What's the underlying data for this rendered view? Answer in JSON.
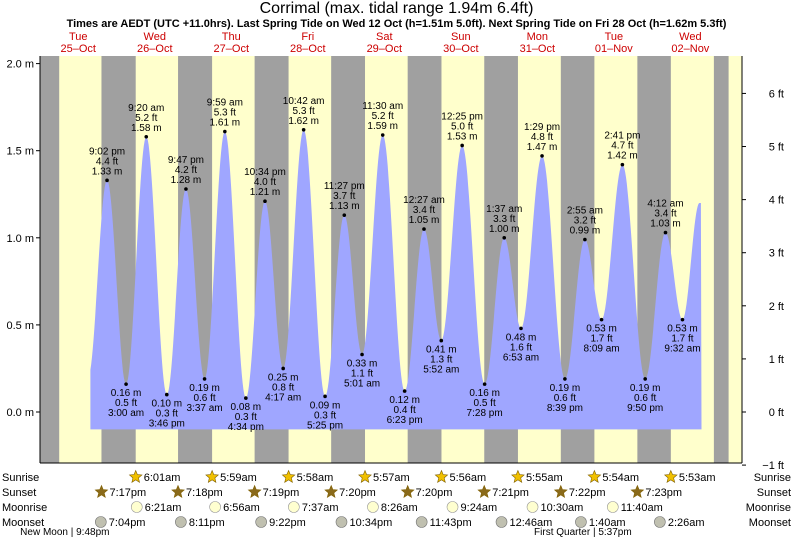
{
  "title": "Corrimal (max. tidal range 1.94m 6.4ft)",
  "subtitle": "Times are AEDT (UTC +11.0hrs). Last Spring Tide on Wed 12 Oct (h=1.51m 5.0ft). Next Spring Tide on Fri 28 Oct (h=1.62m 5.3ft)",
  "colors": {
    "day": "#ffffcc",
    "night": "#a0a0a0",
    "tide": "#9fa6ff",
    "date_text": "#cc0000",
    "sun": "#f0c000",
    "moon": "#ffffd0",
    "moonset": "#c0c0b0"
  },
  "chart_data": {
    "type": "area",
    "ylim_m": [
      -0.25,
      2.04
    ],
    "left_axis_ticks_m": [
      0.0,
      0.5,
      1.0,
      1.5,
      2.0
    ],
    "left_axis_labels": [
      "0.0 m",
      "0.5 m",
      "1.0 m",
      "1.5 m",
      "2.0 m"
    ],
    "right_axis_ticks_ft": [
      -1,
      0,
      1,
      2,
      3,
      4,
      5,
      6
    ],
    "right_axis_labels": [
      "−1 ft",
      "0 ft",
      "1 ft",
      "2 ft",
      "3 ft",
      "4 ft",
      "5 ft",
      "6 ft"
    ],
    "x_start_hour": 0,
    "hours_per_day": 24,
    "days": [
      {
        "day": "Tue",
        "date": "25–Oct"
      },
      {
        "day": "Wed",
        "date": "26–Oct"
      },
      {
        "day": "Thu",
        "date": "27–Oct"
      },
      {
        "day": "Fri",
        "date": "28–Oct"
      },
      {
        "day": "Sat",
        "date": "29–Oct"
      },
      {
        "day": "Sun",
        "date": "30–Oct"
      },
      {
        "day": "Mon",
        "date": "31–Oct"
      },
      {
        "day": "Tue",
        "date": "01–Nov"
      },
      {
        "day": "Wed",
        "date": "02–Nov"
      }
    ],
    "night_bands_hours": [
      [
        0,
        6.02
      ],
      [
        19.28,
        30.02
      ],
      [
        43.3,
        53.98
      ],
      [
        67.32,
        77.97
      ],
      [
        91.33,
        101.95
      ],
      [
        115.33,
        125.93
      ],
      [
        139.35,
        149.92
      ],
      [
        163.37,
        173.9
      ],
      [
        187.38,
        197.88
      ],
      [
        211.38,
        216
      ]
    ],
    "tides": [
      {
        "hour": 21.03,
        "m": 1.33,
        "lines": [
          "9:02 pm",
          "4.4 ft",
          "1.33 m"
        ],
        "pos": "above"
      },
      {
        "hour": 27.0,
        "m": 0.16,
        "lines": [
          "0.16 m",
          "0.5 ft",
          "3:00 am"
        ],
        "pos": "below"
      },
      {
        "hour": 33.33,
        "m": 1.58,
        "lines": [
          "9:20 am",
          "5.2 ft",
          "1.58 m"
        ],
        "pos": "above"
      },
      {
        "hour": 39.77,
        "m": 0.1,
        "lines": [
          "0.10 m",
          "0.3 ft",
          "3:46 pm"
        ],
        "pos": "below"
      },
      {
        "hour": 45.78,
        "m": 1.28,
        "lines": [
          "9:47 pm",
          "4.2 ft",
          "1.28 m"
        ],
        "pos": "above"
      },
      {
        "hour": 51.62,
        "m": 0.19,
        "lines": [
          "0.19 m",
          "0.6 ft",
          "3:37 am"
        ],
        "pos": "below"
      },
      {
        "hour": 57.98,
        "m": 1.61,
        "lines": [
          "9:59 am",
          "5.3 ft",
          "1.61 m"
        ],
        "pos": "above"
      },
      {
        "hour": 64.57,
        "m": 0.08,
        "lines": [
          "0.08 m",
          "0.3 ft",
          "4:34 pm"
        ],
        "pos": "below"
      },
      {
        "hour": 70.57,
        "m": 1.21,
        "lines": [
          "10:34 pm",
          "4.0 ft",
          "1.21 m"
        ],
        "pos": "above"
      },
      {
        "hour": 76.28,
        "m": 0.25,
        "lines": [
          "0.25 m",
          "0.8 ft",
          "4:17 am"
        ],
        "pos": "below"
      },
      {
        "hour": 82.7,
        "m": 1.62,
        "lines": [
          "10:42 am",
          "5.3 ft",
          "1.62 m"
        ],
        "pos": "above"
      },
      {
        "hour": 89.42,
        "m": 0.09,
        "lines": [
          "0.09 m",
          "0.3 ft",
          "5:25 pm"
        ],
        "pos": "below"
      },
      {
        "hour": 95.45,
        "m": 1.13,
        "lines": [
          "11:27 pm",
          "3.7 ft",
          "1.13 m"
        ],
        "pos": "above"
      },
      {
        "hour": 101.02,
        "m": 0.33,
        "lines": [
          "0.33 m",
          "1.1 ft",
          "5:01 am"
        ],
        "pos": "below"
      },
      {
        "hour": 107.5,
        "m": 1.59,
        "lines": [
          "11:30 am",
          "5.2 ft",
          "1.59 m"
        ],
        "pos": "above"
      },
      {
        "hour": 114.38,
        "m": 0.12,
        "lines": [
          "0.12 m",
          "0.4 ft",
          "6:23 pm"
        ],
        "pos": "below"
      },
      {
        "hour": 120.45,
        "m": 1.05,
        "lines": [
          "12:27 am",
          "3.4 ft",
          "1.05 m"
        ],
        "pos": "above"
      },
      {
        "hour": 125.87,
        "m": 0.41,
        "lines": [
          "0.41 m",
          "1.3 ft",
          "5:52 am"
        ],
        "pos": "below"
      },
      {
        "hour": 132.42,
        "m": 1.53,
        "lines": [
          "12:25 pm",
          "5.0 ft",
          "1.53 m"
        ],
        "pos": "above"
      },
      {
        "hour": 139.47,
        "m": 0.16,
        "lines": [
          "0.16 m",
          "0.5 ft",
          "7:28 pm"
        ],
        "pos": "below"
      },
      {
        "hour": 145.62,
        "m": 1.0,
        "lines": [
          "1:37 am",
          "3.3 ft",
          "1.00 m"
        ],
        "pos": "above"
      },
      {
        "hour": 150.88,
        "m": 0.48,
        "lines": [
          "0.48 m",
          "1.6 ft",
          "6:53 am"
        ],
        "pos": "below"
      },
      {
        "hour": 157.48,
        "m": 1.47,
        "lines": [
          "1:29 pm",
          "4.8 ft",
          "1.47 m"
        ],
        "pos": "above"
      },
      {
        "hour": 164.65,
        "m": 0.19,
        "lines": [
          "0.19 m",
          "0.6 ft",
          "8:39 pm"
        ],
        "pos": "below"
      },
      {
        "hour": 170.92,
        "m": 0.99,
        "lines": [
          "2:55 am",
          "3.2 ft",
          "0.99 m"
        ],
        "pos": "above"
      },
      {
        "hour": 176.15,
        "m": 0.53,
        "lines": [
          "0.53 m",
          "1.7 ft",
          "8:09 am"
        ],
        "pos": "below"
      },
      {
        "hour": 182.68,
        "m": 1.42,
        "lines": [
          "2:41 pm",
          "4.7 ft",
          "1.42 m"
        ],
        "pos": "above"
      },
      {
        "hour": 189.83,
        "m": 0.19,
        "lines": [
          "0.19 m",
          "0.6 ft",
          "9:50 pm"
        ],
        "pos": "below"
      },
      {
        "hour": 196.2,
        "m": 1.03,
        "lines": [
          "4:12 am",
          "3.4 ft",
          "1.03 m"
        ],
        "pos": "above"
      },
      {
        "hour": 201.53,
        "m": 0.53,
        "lines": [
          "0.53 m",
          "1.7 ft",
          "9:32 am"
        ],
        "pos": "below"
      }
    ]
  },
  "legend_rows": [
    {
      "name": "sunrise",
      "label": "Sunrise",
      "icon": "sun-icon"
    },
    {
      "name": "sunset",
      "label": "Sunset",
      "icon": "sunset-icon"
    },
    {
      "name": "moonrise",
      "label": "Moonrise",
      "icon": "moon-icon"
    },
    {
      "name": "moonset",
      "label": "Moonset",
      "icon": "moonset-icon"
    }
  ],
  "sunrise": [
    {
      "hour": 30.02,
      "text": "6:01am"
    },
    {
      "hour": 53.98,
      "text": "5:59am"
    },
    {
      "hour": 77.97,
      "text": "5:58am"
    },
    {
      "hour": 101.95,
      "text": "5:57am"
    },
    {
      "hour": 125.93,
      "text": "5:56am"
    },
    {
      "hour": 149.92,
      "text": "5:55am"
    },
    {
      "hour": 173.9,
      "text": "5:54am"
    },
    {
      "hour": 197.88,
      "text": "5:53am"
    }
  ],
  "sunset": [
    {
      "hour": 19.28,
      "text": "7:17pm"
    },
    {
      "hour": 43.3,
      "text": "7:18pm"
    },
    {
      "hour": 67.32,
      "text": "7:19pm"
    },
    {
      "hour": 91.33,
      "text": "7:20pm"
    },
    {
      "hour": 115.33,
      "text": "7:20pm"
    },
    {
      "hour": 139.35,
      "text": "7:21pm"
    },
    {
      "hour": 163.37,
      "text": "7:22pm"
    },
    {
      "hour": 187.38,
      "text": "7:23pm"
    }
  ],
  "moonrise": [
    {
      "hour": 30.35,
      "text": "6:21am"
    },
    {
      "hour": 54.93,
      "text": "6:56am"
    },
    {
      "hour": 79.62,
      "text": "7:37am"
    },
    {
      "hour": 104.43,
      "text": "8:26am"
    },
    {
      "hour": 129.4,
      "text": "9:24am"
    },
    {
      "hour": 154.5,
      "text": "10:30am"
    },
    {
      "hour": 179.67,
      "text": "11:40am"
    }
  ],
  "moonset": [
    {
      "hour": 19.07,
      "text": "7:04pm"
    },
    {
      "hour": 44.18,
      "text": "8:11pm"
    },
    {
      "hour": 69.37,
      "text": "9:22pm"
    },
    {
      "hour": 94.57,
      "text": "10:34pm"
    },
    {
      "hour": 119.72,
      "text": "11:43pm"
    },
    {
      "hour": 144.77,
      "text": "12:46am"
    },
    {
      "hour": 169.67,
      "text": "1:40am"
    },
    {
      "hour": 194.43,
      "text": "2:26am"
    }
  ],
  "moon_phases": [
    {
      "hour": 21.8,
      "text": "New Moon | 9:48pm",
      "anchor": "end"
    },
    {
      "hour": 185.6,
      "text": "First Quarter | 5:37pm",
      "anchor": "end"
    }
  ]
}
